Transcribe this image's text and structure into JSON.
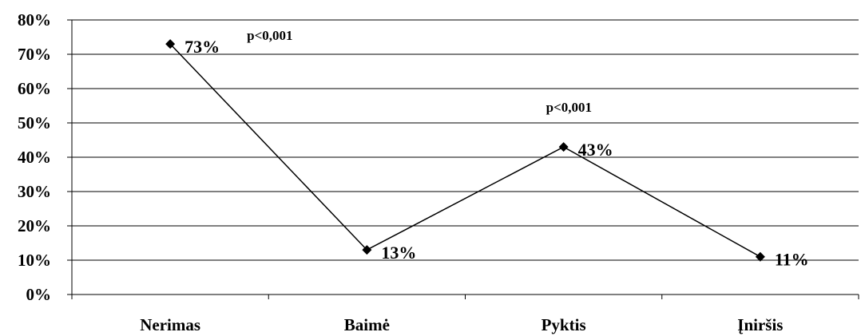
{
  "chart_data": {
    "type": "line",
    "title": "",
    "xlabel": "",
    "ylabel": "",
    "categories": [
      "Nerimas",
      "Baimė",
      "Pyktis",
      "Įniršis"
    ],
    "series": [
      {
        "values": [
          73,
          13,
          43,
          11
        ],
        "data_labels": [
          "73%",
          "13%",
          "43%",
          "11%"
        ],
        "color": "#000000",
        "marker": "diamond"
      }
    ],
    "ylim": [
      0,
      80
    ],
    "y_ticks": [
      0,
      10,
      20,
      30,
      40,
      50,
      60,
      70,
      80
    ],
    "y_tick_labels": [
      "0%",
      "10%",
      "20%",
      "30%",
      "40%",
      "50%",
      "60%",
      "70%",
      "80%"
    ],
    "grid": true,
    "legend": "none",
    "annotations": [
      {
        "text": "p<0,001",
        "near_category": "Nerimas"
      },
      {
        "text": "p<0,001",
        "near_category": "Pyktis"
      }
    ]
  }
}
